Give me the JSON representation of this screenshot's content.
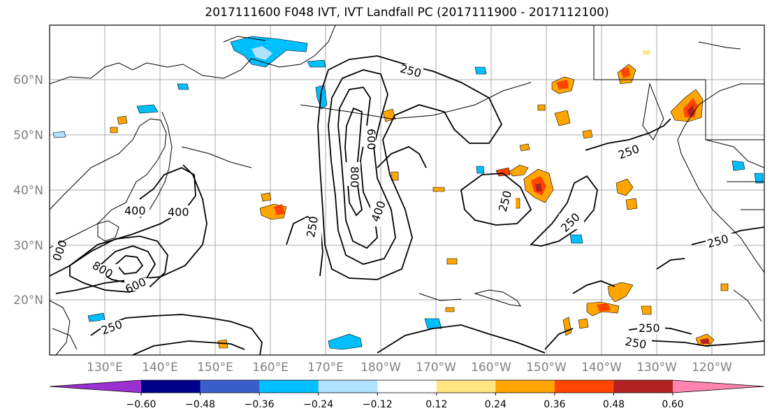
{
  "title": "2017111600 F048 IVT, IVT Landfall PC (2017111900 - 2017112100)",
  "lat_labels": [
    "60°N",
    "50°N",
    "40°N",
    "30°N",
    "20°N"
  ],
  "lon_labels": [
    "130°E",
    "140°E",
    "150°E",
    "160°E",
    "170°E",
    "180°W",
    "170°W",
    "160°W",
    "150°W",
    "140°W",
    "130°W",
    "120°W"
  ],
  "contour_labels": {
    "c250_a": "250",
    "c250_b": "250",
    "c250_c": "250",
    "c250_d": "250",
    "c250_e": "250",
    "c250_f": "250",
    "c250_g": "250",
    "c250_h": "250",
    "c250_i": "250",
    "c400_a": "400",
    "c400_b": "400",
    "c400_c": "400",
    "c600_a": "600",
    "c600_b": "600",
    "c800_a": "800",
    "c800_b": "800",
    "c1000": "000"
  },
  "colorbar": {
    "ticks": [
      "−0.60",
      "−0.48",
      "−0.36",
      "−0.24",
      "−0.12",
      "0.12",
      "0.24",
      "0.36",
      "0.48",
      "0.60"
    ],
    "colors": [
      "#9b30d0",
      "#00008b",
      "#3a5fcd",
      "#00bfff",
      "#b0e2ff",
      "#ffffff",
      "#ffe680",
      "#ffa500",
      "#ff4500",
      "#b22222",
      "#ff85b0"
    ]
  }
}
